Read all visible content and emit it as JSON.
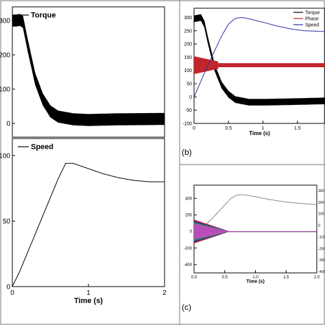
{
  "figure": {
    "panel_b_label": "(b)",
    "panel_c_label": "(c)"
  },
  "chart_data": [
    {
      "id": "a-top",
      "type": "line",
      "legend": [
        "Torque"
      ],
      "legend_position": "top-left",
      "yticks": [
        0,
        100,
        200,
        300
      ],
      "ytick_labels": [
        "0",
        "100",
        "200",
        "300"
      ],
      "ylim": [
        -40,
        340
      ],
      "xlim": [
        0,
        2
      ],
      "series": [
        {
          "name": "Torque",
          "color": "#000000",
          "x": [
            0,
            0.05,
            0.1,
            0.14,
            0.2,
            0.3,
            0.4,
            0.5,
            0.6,
            0.8,
            1.0,
            1.4,
            2.0
          ],
          "y": [
            300,
            300,
            302,
            296,
            230,
            130,
            70,
            35,
            20,
            12,
            10,
            12,
            13
          ],
          "ripple": 35
        }
      ]
    },
    {
      "id": "a-bottom",
      "type": "line",
      "legend": [
        "Speed"
      ],
      "legend_position": "top-left",
      "xlabel": "Time (s)",
      "xticks": [
        0,
        1,
        2
      ],
      "xtick_labels": [
        "0",
        "1",
        "2"
      ],
      "yticks": [
        0,
        50,
        100
      ],
      "ytick_labels": [
        "0",
        "50",
        "100"
      ],
      "ylim": [
        0,
        113
      ],
      "xlim": [
        0,
        2
      ],
      "series": [
        {
          "name": "Speed",
          "color": "#000000",
          "x": [
            0,
            0.1,
            0.2,
            0.3,
            0.4,
            0.5,
            0.6,
            0.7,
            0.8,
            1.0,
            1.2,
            1.4,
            1.6,
            1.8,
            2.0
          ],
          "y": [
            0,
            12,
            26,
            40,
            54,
            68,
            82,
            94,
            94,
            90,
            86,
            83,
            81,
            80,
            80
          ]
        }
      ]
    },
    {
      "id": "b",
      "type": "line",
      "legend": [
        "Torque",
        "Phase",
        "Speed"
      ],
      "legend_position": "top-right",
      "xlabel": "Time (s)",
      "xticks": [
        0,
        0.5,
        1,
        1.5
      ],
      "xtick_labels": [
        "0",
        "0.5",
        "1",
        "1.5"
      ],
      "yticks": [
        -100,
        -50,
        0,
        50,
        100,
        150,
        200,
        250,
        300
      ],
      "ytick_labels": [
        "-100",
        "-50",
        "0",
        "50",
        "100",
        "150",
        "200",
        "250",
        "300"
      ],
      "ylim": [
        -100,
        335
      ],
      "xlim": [
        0,
        1.9
      ],
      "series": [
        {
          "name": "Torque",
          "color": "#000000",
          "x": [
            0,
            0.1,
            0.15,
            0.2,
            0.3,
            0.4,
            0.5,
            0.6,
            0.8,
            1.0,
            1.4,
            1.9
          ],
          "y": [
            295,
            300,
            275,
            215,
            110,
            45,
            10,
            -10,
            -20,
            -20,
            -18,
            -15
          ],
          "ripple": 25
        },
        {
          "name": "Phase",
          "color": "#c0262a",
          "x": [
            0,
            0.05,
            0.1,
            0.15,
            0.2,
            0.25,
            0.3,
            0.35,
            0.4,
            0.5,
            0.7,
            1.0,
            1.5,
            1.9
          ],
          "y": [
            120,
            120,
            120,
            120,
            120,
            120,
            120,
            120,
            120,
            120,
            120,
            120,
            120,
            120
          ],
          "ripple": 28
        },
        {
          "name": "Speed",
          "color": "#2e2ea8",
          "x": [
            0,
            0.1,
            0.2,
            0.3,
            0.4,
            0.5,
            0.6,
            0.7,
            0.8,
            1.0,
            1.2,
            1.4,
            1.6,
            1.9
          ],
          "y": [
            0,
            60,
            120,
            175,
            230,
            275,
            297,
            300,
            295,
            282,
            268,
            257,
            250,
            247
          ]
        }
      ]
    },
    {
      "id": "c",
      "type": "line",
      "xlabel": "Time (s)",
      "xticks": [
        0,
        0.5,
        1,
        1.5,
        2
      ],
      "xtick_labels": [
        "0.0",
        "0.5",
        "1.0",
        "1.5",
        "2.0"
      ],
      "yticks": [
        -400,
        -200,
        0,
        200,
        400
      ],
      "ytick_labels": [
        "-400",
        "-200",
        "0",
        "200",
        "400"
      ],
      "ylim": [
        -500,
        560
      ],
      "xlim": [
        0,
        2
      ],
      "right_ytick_labels": [
        "300",
        "200",
        "100",
        "0",
        "-100",
        "-200",
        "-300",
        "-400"
      ],
      "series": [
        {
          "name": "",
          "color": "#888888",
          "x": [
            0,
            0.1,
            0.2,
            0.3,
            0.4,
            0.5,
            0.6,
            0.7,
            0.8,
            1.0,
            1.2,
            1.5,
            1.8,
            2.0
          ],
          "y": [
            0,
            40,
            90,
            160,
            240,
            320,
            400,
            440,
            445,
            420,
            390,
            355,
            335,
            325
          ]
        },
        {
          "name": "",
          "color": "#c0262a",
          "x": [
            0,
            0.1,
            0.2,
            0.3,
            0.4,
            0.5,
            2.0
          ],
          "y": [
            0,
            0,
            0,
            0,
            0,
            0,
            0
          ],
          "ripple": 90
        },
        {
          "name": "",
          "color": "#2e2ea8",
          "x": [
            0,
            0.1,
            0.2,
            0.3,
            0.4,
            0.5,
            2.0
          ],
          "y": [
            0,
            0,
            0,
            0,
            0,
            0,
            0
          ],
          "ripple": 80
        },
        {
          "name": "",
          "color": "#2e8b57",
          "x": [
            0,
            0.1,
            0.2,
            0.3,
            0.4,
            0.5,
            2.0
          ],
          "y": [
            0,
            0,
            0,
            0,
            0,
            0,
            0
          ],
          "ripple": 70
        },
        {
          "name": "",
          "color": "#b84fb8",
          "x": [
            0,
            0.1,
            0.2,
            0.3,
            0.4,
            0.5,
            2.0
          ],
          "y": [
            0,
            0,
            0,
            0,
            0,
            0,
            0
          ],
          "ripple": 60
        }
      ]
    }
  ]
}
